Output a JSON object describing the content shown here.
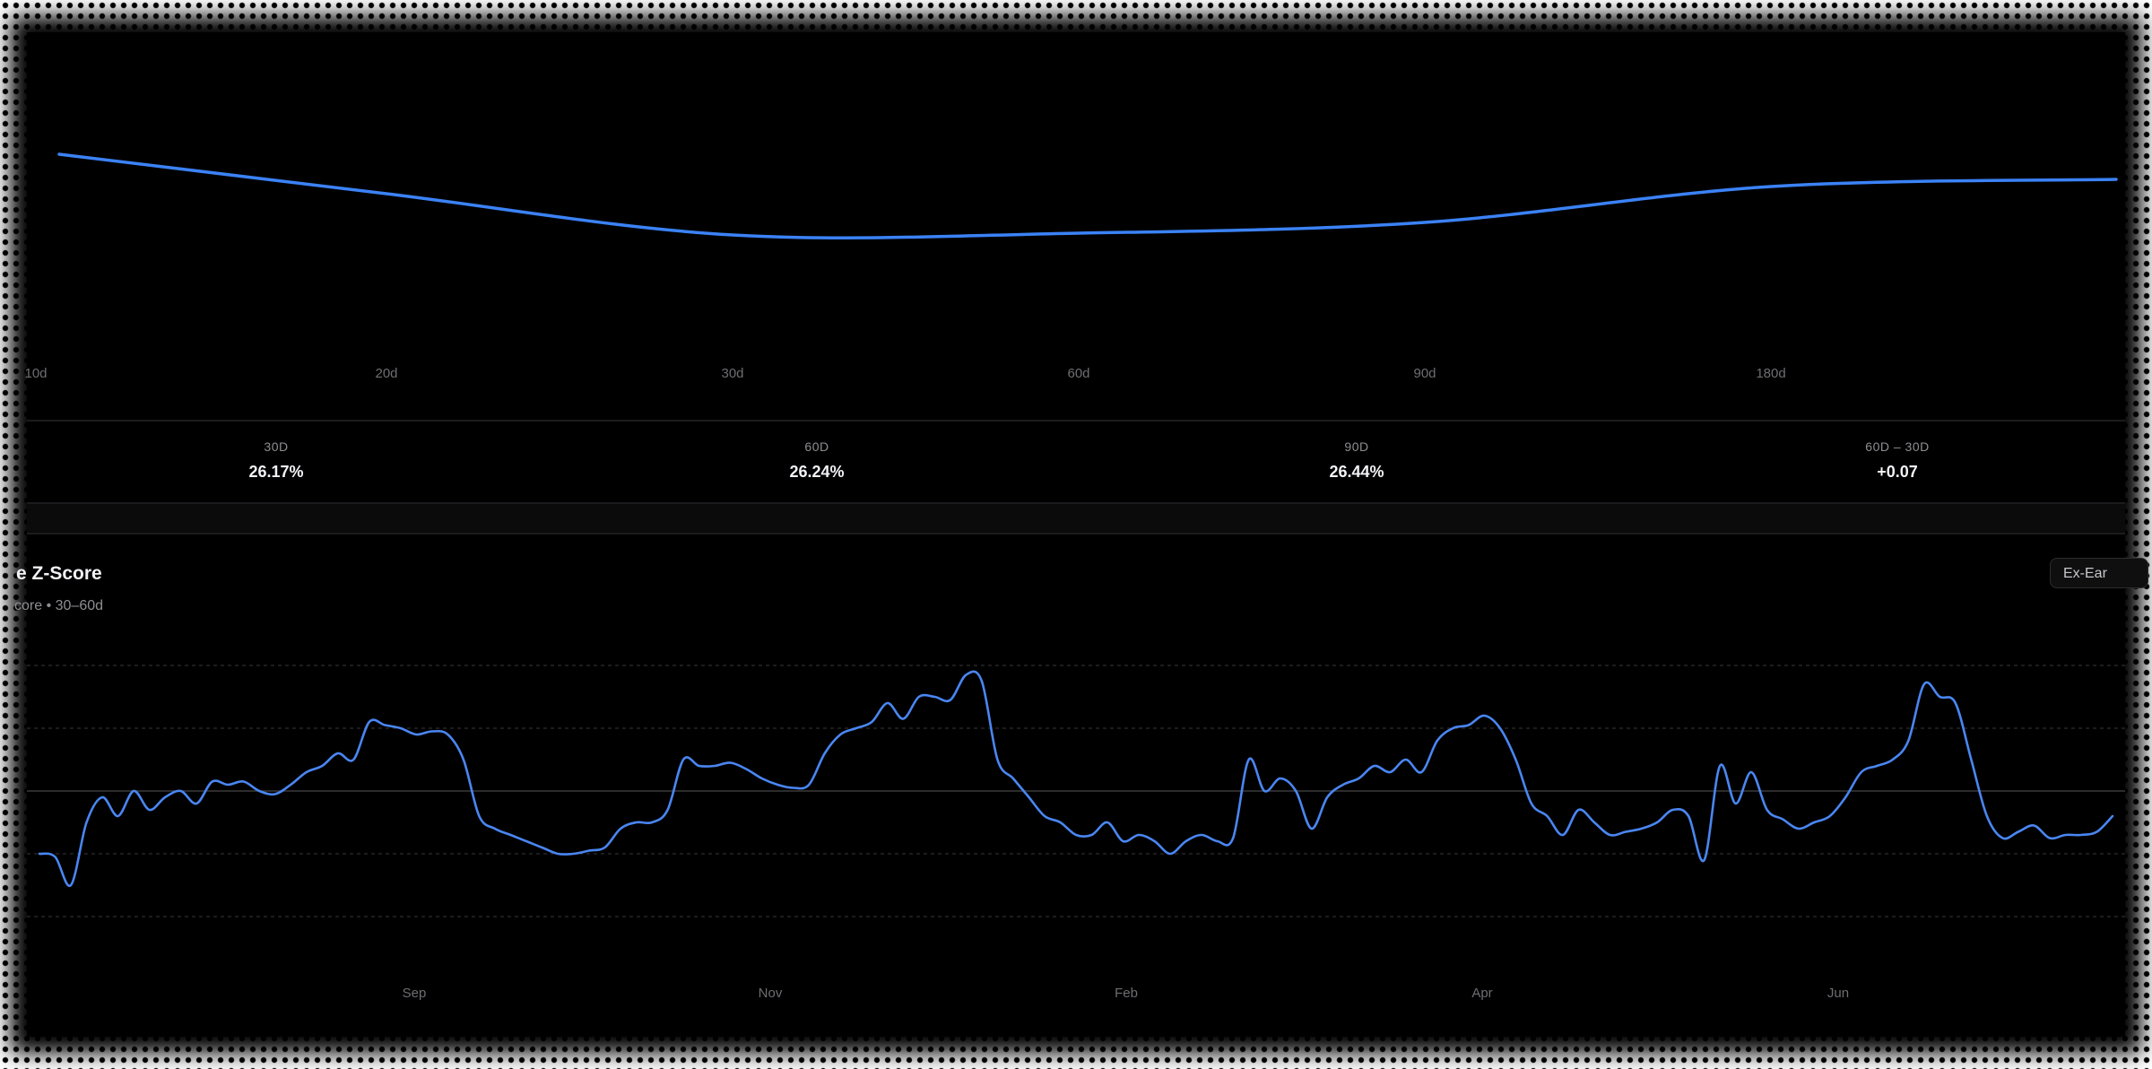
{
  "colors": {
    "accent": "#3b82f6",
    "background": "#000000",
    "text": "#f2f2f7",
    "muted": "#8e8e93"
  },
  "stats": [
    {
      "label": "30D",
      "value": "26.17%"
    },
    {
      "label": "60D",
      "value": "26.24%"
    },
    {
      "label": "90D",
      "value": "26.44%"
    },
    {
      "label": "60D – 30D",
      "value": "+0.07"
    }
  ],
  "zscore": {
    "title": "e Z-Score",
    "subtitle": "core • 30–60d",
    "toggle_label": "Ex-Ear"
  },
  "chart_data": [
    {
      "type": "line",
      "x_tick_labels": [
        "10d",
        "20d",
        "30d",
        "60d",
        "90d",
        "180d"
      ],
      "series": [
        {
          "values": [
            26.62,
            26.4,
            26.17,
            26.18,
            26.24,
            26.44,
            26.48
          ]
        }
      ],
      "ylim": [
        25.5,
        27.2
      ],
      "grid": false
    },
    {
      "type": "line",
      "x_tick_labels": [
        "Sep",
        "Nov",
        "Feb",
        "Apr",
        "Jun"
      ],
      "ylim": [
        -2.2,
        1.8
      ],
      "grid": true,
      "series": [
        {
          "values": [
            -1.0,
            -1.05,
            -1.5,
            -0.5,
            -0.1,
            -0.4,
            0.0,
            -0.3,
            -0.1,
            0.0,
            -0.2,
            0.15,
            0.1,
            0.15,
            0.0,
            -0.05,
            0.1,
            0.3,
            0.4,
            0.6,
            0.5,
            1.1,
            1.05,
            1.0,
            0.9,
            0.95,
            0.9,
            0.5,
            -0.4,
            -0.6,
            -0.7,
            -0.8,
            -0.9,
            -1.0,
            -1.0,
            -0.95,
            -0.9,
            -0.6,
            -0.5,
            -0.5,
            -0.3,
            0.5,
            0.4,
            0.4,
            0.45,
            0.35,
            0.2,
            0.1,
            0.05,
            0.1,
            0.6,
            0.9,
            1.0,
            1.1,
            1.4,
            1.15,
            1.5,
            1.5,
            1.45,
            1.85,
            1.75,
            0.5,
            0.2,
            -0.1,
            -0.4,
            -0.5,
            -0.7,
            -0.7,
            -0.5,
            -0.8,
            -0.7,
            -0.8,
            -1.0,
            -0.8,
            -0.7,
            -0.8,
            -0.75,
            0.5,
            0.0,
            0.2,
            0.0,
            -0.6,
            -0.1,
            0.1,
            0.2,
            0.4,
            0.3,
            0.5,
            0.3,
            0.8,
            1.0,
            1.05,
            1.2,
            1.0,
            0.5,
            -0.2,
            -0.4,
            -0.7,
            -0.3,
            -0.5,
            -0.7,
            -0.65,
            -0.6,
            -0.5,
            -0.3,
            -0.4,
            -1.1,
            0.4,
            -0.2,
            0.3,
            -0.3,
            -0.45,
            -0.6,
            -0.5,
            -0.4,
            -0.1,
            0.3,
            0.4,
            0.5,
            0.8,
            1.7,
            1.5,
            1.4,
            0.5,
            -0.4,
            -0.75,
            -0.65,
            -0.55,
            -0.75,
            -0.7,
            -0.7,
            -0.65,
            -0.4
          ]
        }
      ]
    }
  ]
}
